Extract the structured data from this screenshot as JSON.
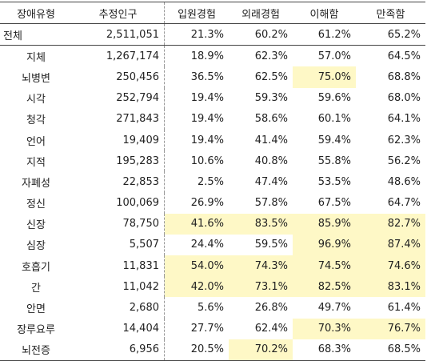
{
  "table": {
    "headers": [
      "장애유형",
      "추정인구",
      "입원경험",
      "외래경험",
      "이해함",
      "만족함"
    ],
    "rows": [
      {
        "type": "전체",
        "pop": "2,511,051",
        "v": [
          "21.3%",
          "60.2%",
          "61.2%",
          "65.2%"
        ],
        "hl": [
          false,
          false,
          false,
          false
        ]
      },
      {
        "type": "지체",
        "pop": "1,267,174",
        "v": [
          "18.9%",
          "62.3%",
          "57.0%",
          "64.5%"
        ],
        "hl": [
          false,
          false,
          false,
          false
        ]
      },
      {
        "type": "뇌병변",
        "pop": "250,456",
        "v": [
          "36.5%",
          "62.5%",
          "75.0%",
          "68.8%"
        ],
        "hl": [
          false,
          false,
          true,
          false
        ]
      },
      {
        "type": "시각",
        "pop": "252,794",
        "v": [
          "19.4%",
          "59.3%",
          "59.6%",
          "68.0%"
        ],
        "hl": [
          false,
          false,
          false,
          false
        ]
      },
      {
        "type": "청각",
        "pop": "271,843",
        "v": [
          "19.4%",
          "58.6%",
          "60.1%",
          "64.1%"
        ],
        "hl": [
          false,
          false,
          false,
          false
        ]
      },
      {
        "type": "언어",
        "pop": "19,409",
        "v": [
          "19.4%",
          "41.4%",
          "59.4%",
          "62.3%"
        ],
        "hl": [
          false,
          false,
          false,
          false
        ]
      },
      {
        "type": "지적",
        "pop": "195,283",
        "v": [
          "10.6%",
          "40.8%",
          "55.8%",
          "56.2%"
        ],
        "hl": [
          false,
          false,
          false,
          false
        ]
      },
      {
        "type": "자폐성",
        "pop": "22,853",
        "v": [
          "2.5%",
          "47.4%",
          "53.5%",
          "48.6%"
        ],
        "hl": [
          false,
          false,
          false,
          false
        ]
      },
      {
        "type": "정신",
        "pop": "100,069",
        "v": [
          "26.9%",
          "57.8%",
          "67.5%",
          "64.7%"
        ],
        "hl": [
          false,
          false,
          false,
          false
        ]
      },
      {
        "type": "신장",
        "pop": "78,750",
        "v": [
          "41.6%",
          "83.5%",
          "85.9%",
          "82.7%"
        ],
        "hl": [
          true,
          true,
          true,
          true
        ]
      },
      {
        "type": "심장",
        "pop": "5,507",
        "v": [
          "24.4%",
          "59.5%",
          "96.9%",
          "87.4%"
        ],
        "hl": [
          false,
          false,
          true,
          true
        ]
      },
      {
        "type": "호흡기",
        "pop": "11,831",
        "v": [
          "54.0%",
          "74.3%",
          "74.5%",
          "74.6%"
        ],
        "hl": [
          true,
          true,
          true,
          true
        ]
      },
      {
        "type": "간",
        "pop": "11,042",
        "v": [
          "42.0%",
          "73.1%",
          "82.5%",
          "83.1%"
        ],
        "hl": [
          true,
          true,
          true,
          true
        ]
      },
      {
        "type": "안면",
        "pop": "2,680",
        "v": [
          "5.6%",
          "26.8%",
          "49.7%",
          "61.4%"
        ],
        "hl": [
          false,
          false,
          false,
          false
        ]
      },
      {
        "type": "장루요루",
        "pop": "14,404",
        "v": [
          "27.7%",
          "62.4%",
          "70.3%",
          "76.7%"
        ],
        "hl": [
          false,
          false,
          true,
          true
        ]
      },
      {
        "type": "뇌전증",
        "pop": "6,956",
        "v": [
          "20.5%",
          "70.2%",
          "68.3%",
          "68.5%"
        ],
        "hl": [
          false,
          true,
          false,
          false
        ]
      }
    ]
  },
  "colors": {
    "highlight": "#fef8c6"
  }
}
